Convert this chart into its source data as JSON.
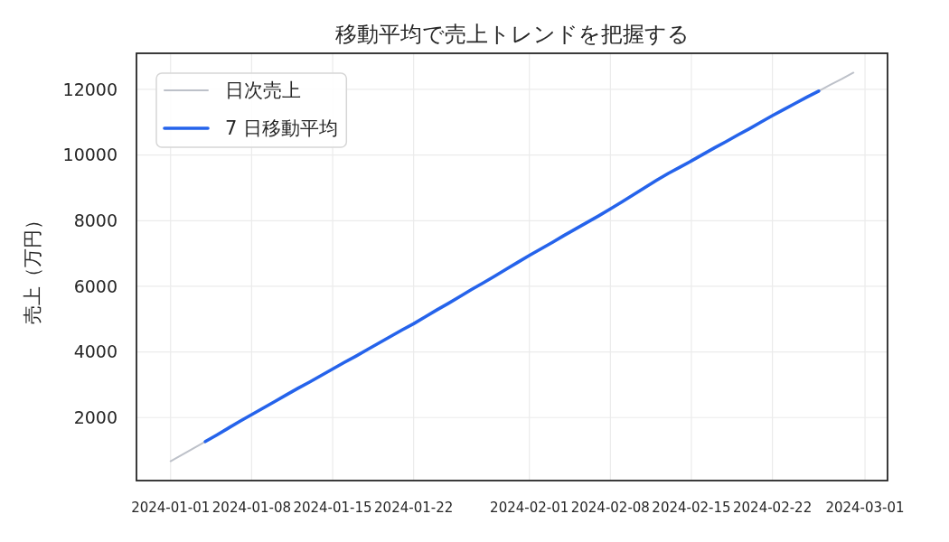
{
  "chart_data": {
    "type": "line",
    "title": "移動平均で売上トレンドを把握する",
    "ylabel": "売上（万円）",
    "x": [
      "2024-01-01",
      "2024-01-02",
      "2024-01-03",
      "2024-01-04",
      "2024-01-05",
      "2024-01-06",
      "2024-01-07",
      "2024-01-08",
      "2024-01-09",
      "2024-01-10",
      "2024-01-11",
      "2024-01-12",
      "2024-01-13",
      "2024-01-14",
      "2024-01-15",
      "2024-01-16",
      "2024-01-17",
      "2024-01-18",
      "2024-01-19",
      "2024-01-20",
      "2024-01-21",
      "2024-01-22",
      "2024-01-23",
      "2024-01-24",
      "2024-01-25",
      "2024-01-26",
      "2024-01-27",
      "2024-01-28",
      "2024-01-29",
      "2024-01-30",
      "2024-01-31",
      "2024-02-01",
      "2024-02-02",
      "2024-02-03",
      "2024-02-04",
      "2024-02-05",
      "2024-02-06",
      "2024-02-07",
      "2024-02-08",
      "2024-02-09",
      "2024-02-10",
      "2024-02-11",
      "2024-02-12",
      "2024-02-13",
      "2024-02-14",
      "2024-02-15",
      "2024-02-16",
      "2024-02-17",
      "2024-02-18",
      "2024-02-19",
      "2024-02-20",
      "2024-02-21",
      "2024-02-22",
      "2024-02-23",
      "2024-02-24",
      "2024-02-25",
      "2024-02-26",
      "2024-02-27",
      "2024-02-28",
      "2024-02-29"
    ],
    "series": [
      {
        "name": "日次売上",
        "color": "#bdc1c9",
        "values": [
          670,
          870,
          1070,
          1270,
          null,
          null,
          null,
          null,
          null,
          null,
          null,
          null,
          null,
          null,
          null,
          null,
          null,
          null,
          null,
          null,
          null,
          null,
          null,
          null,
          null,
          null,
          null,
          null,
          null,
          null,
          null,
          null,
          null,
          null,
          null,
          null,
          null,
          null,
          null,
          null,
          null,
          null,
          null,
          null,
          null,
          null,
          null,
          null,
          null,
          null,
          null,
          null,
          null,
          null,
          null,
          null,
          11950,
          12140,
          12320,
          12510
        ]
      },
      {
        "name": "7 日移動平均",
        "color": "#2563eb",
        "values": [
          null,
          null,
          null,
          1270,
          1470,
          1680,
          1890,
          2090,
          2290,
          2490,
          2690,
          2890,
          3080,
          3280,
          3480,
          3680,
          3870,
          4070,
          4270,
          4470,
          4670,
          4860,
          5070,
          5280,
          5480,
          5690,
          5900,
          6100,
          6310,
          6520,
          6730,
          6940,
          7140,
          7340,
          7550,
          7750,
          7950,
          8150,
          8360,
          8570,
          8790,
          9010,
          9230,
          9440,
          9630,
          9820,
          10020,
          10220,
          10410,
          10610,
          10800,
          11000,
          11200,
          11390,
          11580,
          11770,
          11950,
          null,
          null,
          null
        ]
      }
    ],
    "xlim": [
      "2023-12-29T01:12",
      "2024-03-02T22:48"
    ],
    "ylim": [
      80,
      13100
    ],
    "xticks": [
      "2024-01-01",
      "2024-01-08",
      "2024-01-15",
      "2024-01-22",
      "2024-02-01",
      "2024-02-08",
      "2024-02-15",
      "2024-02-22",
      "2024-03-01"
    ],
    "yticks": [
      2000,
      4000,
      6000,
      8000,
      10000,
      12000
    ],
    "grid": true,
    "legend": "top left"
  }
}
